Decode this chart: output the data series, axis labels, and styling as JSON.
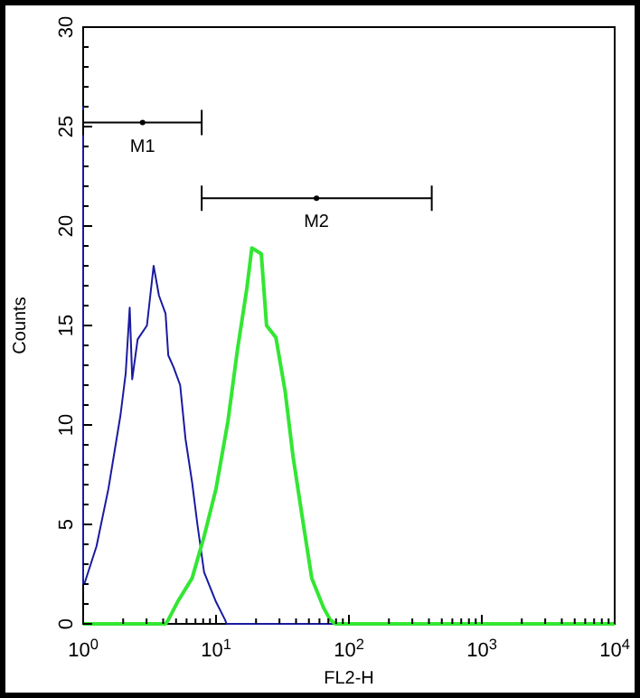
{
  "chart_data": {
    "type": "line",
    "xlabel": "FL2-H",
    "ylabel": "Counts",
    "log": "x",
    "xlim": [
      1,
      10000
    ],
    "ylim": [
      0,
      30
    ],
    "xticks": [
      {
        "value": 1,
        "label": "10$^{0}$"
      },
      {
        "value": 2,
        "label": null
      },
      {
        "value": 3,
        "label": null
      },
      {
        "value": 4,
        "label": null
      },
      {
        "value": 5,
        "label": null
      },
      {
        "value": 6,
        "label": null
      },
      {
        "value": 7,
        "label": null
      },
      {
        "value": 8,
        "label": null
      },
      {
        "value": 9,
        "label": null
      },
      {
        "value": 10,
        "label": "10$^{1}$"
      },
      {
        "value": 20,
        "label": null
      },
      {
        "value": 30,
        "label": null
      },
      {
        "value": 40,
        "label": null
      },
      {
        "value": 50,
        "label": null
      },
      {
        "value": 60,
        "label": null
      },
      {
        "value": 70,
        "label": null
      },
      {
        "value": 80,
        "label": null
      },
      {
        "value": 90,
        "label": null
      },
      {
        "value": 100,
        "label": "10$^{2}$"
      },
      {
        "value": 200,
        "label": null
      },
      {
        "value": 300,
        "label": null
      },
      {
        "value": 400,
        "label": null
      },
      {
        "value": 500,
        "label": null
      },
      {
        "value": 600,
        "label": null
      },
      {
        "value": 700,
        "label": null
      },
      {
        "value": 800,
        "label": null
      },
      {
        "value": 900,
        "label": null
      },
      {
        "value": 1000,
        "label": "10$^{3}$"
      },
      {
        "value": 2000,
        "label": null
      },
      {
        "value": 3000,
        "label": null
      },
      {
        "value": 4000,
        "label": null
      },
      {
        "value": 5000,
        "label": null
      },
      {
        "value": 6000,
        "label": null
      },
      {
        "value": 7000,
        "label": null
      },
      {
        "value": 8000,
        "label": null
      },
      {
        "value": 9000,
        "label": null
      },
      {
        "value": 10000,
        "label": "10$^{4}$"
      }
    ],
    "yticks": [
      0,
      {
        "value": 1,
        "label": null
      },
      {
        "value": 2,
        "label": null
      },
      {
        "value": 3,
        "label": null
      },
      {
        "value": 4,
        "label": null
      },
      5,
      {
        "value": 6,
        "label": null
      },
      {
        "value": 7,
        "label": null
      },
      {
        "value": 8,
        "label": null
      },
      {
        "value": 9,
        "label": null
      },
      10,
      {
        "value": 11,
        "label": null
      },
      {
        "value": 12,
        "label": null
      },
      {
        "value": 13,
        "label": null
      },
      {
        "value": 14,
        "label": null
      },
      15,
      {
        "value": 16,
        "label": null
      },
      {
        "value": 17,
        "label": null
      },
      {
        "value": 18,
        "label": null
      },
      {
        "value": 19,
        "label": null
      },
      20,
      {
        "value": 21,
        "label": null
      },
      {
        "value": 22,
        "label": null
      },
      {
        "value": 23,
        "label": null
      },
      {
        "value": 24,
        "label": null
      },
      25,
      {
        "value": 26,
        "label": null
      },
      {
        "value": 27,
        "label": null
      },
      {
        "value": 28,
        "label": null
      },
      {
        "value": 29,
        "label": null
      },
      30
    ],
    "grid": false,
    "legend": false,
    "marker": "none",
    "line_style": "solid",
    "series": [
      {
        "color": "#1a1aa0",
        "x": [
          1,
          1,
          1.02,
          1.26,
          1.55,
          1.91,
          2.09,
          2.24,
          2.34,
          2.57,
          3.02,
          3.39,
          3.72,
          4.17,
          4.37,
          4.79,
          5.37,
          5.89,
          6.61,
          7.24,
          8.13,
          10,
          11.7,
          12,
          100
        ],
        "values": [
          26,
          2,
          2,
          3.9,
          6.8,
          10.5,
          12.6,
          15.9,
          12.3,
          14.3,
          15,
          18,
          16.5,
          15.6,
          13.5,
          12.9,
          12,
          9.3,
          7.1,
          5,
          2.6,
          1.1,
          0.2,
          0,
          0
        ]
      },
      {
        "color": "#33e633",
        "x": [
          1,
          4.17,
          4.37,
          5.13,
          6.61,
          8.13,
          10,
          12.3,
          14.5,
          17,
          18.6,
          21.9,
          24,
          28.2,
          33.1,
          38,
          44.7,
          52.5,
          64.6,
          72.4,
          79,
          10000
        ],
        "values": [
          0,
          0,
          0.2,
          1.1,
          2.3,
          4.4,
          6.8,
          10.2,
          13.8,
          16.8,
          18.9,
          18.6,
          15,
          14.4,
          11.7,
          8.4,
          5.3,
          2.3,
          0.8,
          0.2,
          0,
          0
        ]
      },
      {
        "type": "scatter",
        "color": "#000000",
        "marker": "circle",
        "x": [
          2.8,
          57
        ],
        "values": [
          25.2,
          21.4
        ],
        "xerrors": [
          [
            1,
            7.8
          ],
          [
            7.8,
            420
          ]
        ]
      }
    ],
    "annotations": [
      {
        "text": "M1",
        "x": 2.8,
        "y": 25.2
      },
      {
        "text": "M2",
        "x": 57,
        "y": 21.4
      }
    ]
  }
}
